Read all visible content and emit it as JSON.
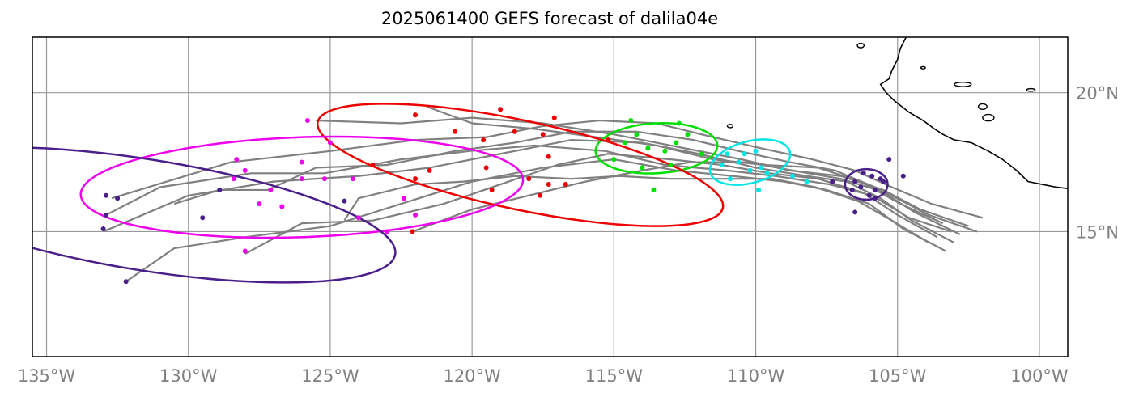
{
  "title": "2025061400 GEFS forecast of dalila04e",
  "x_ticks": [
    {
      "lon": -135,
      "label": "135°W"
    },
    {
      "lon": -130,
      "label": "130°W"
    },
    {
      "lon": -125,
      "label": "125°W"
    },
    {
      "lon": -120,
      "label": "120°W"
    },
    {
      "lon": -115,
      "label": "115°W"
    },
    {
      "lon": -110,
      "label": "110°W"
    },
    {
      "lon": -105,
      "label": "105°W"
    },
    {
      "lon": -100,
      "label": "100°W"
    }
  ],
  "y_ticks": [
    {
      "lat": 20,
      "label": "20°N"
    },
    {
      "lat": 15,
      "label": "15°N"
    }
  ],
  "extent": {
    "lon_min": -135.5,
    "lon_max": -99.0,
    "lat_min": 10.5,
    "lat_max": 22.0
  },
  "colors": {
    "tracks": "#808080",
    "coast": "#000000",
    "grid": "#999999"
  },
  "chart_data": {
    "type": "map",
    "title": "2025061400 GEFS forecast of dalila04e",
    "lon_range": [
      -135.5,
      -99.0
    ],
    "lat_range": [
      10.5,
      22.0
    ],
    "grid": true,
    "ensemble_tracks": [
      [
        [
          -103.0,
          14.6
        ],
        [
          -104.5,
          15.4
        ],
        [
          -105.6,
          16.2
        ],
        [
          -106.8,
          16.8
        ],
        [
          -108.2,
          17.0
        ],
        [
          -110.0,
          17.3
        ],
        [
          -112.0,
          17.8
        ],
        [
          -114.0,
          18.2
        ],
        [
          -116.5,
          18.3
        ],
        [
          -119.0,
          17.8
        ],
        [
          -121.5,
          17.3
        ],
        [
          -124.0,
          17.0
        ],
        [
          -127.0,
          16.8
        ],
        [
          -130.0,
          16.3
        ],
        [
          -133.0,
          15.0
        ]
      ],
      [
        [
          -102.5,
          15.2
        ],
        [
          -104.2,
          15.8
        ],
        [
          -105.5,
          16.5
        ],
        [
          -107.0,
          17.0
        ],
        [
          -108.8,
          17.2
        ],
        [
          -110.5,
          17.6
        ],
        [
          -112.5,
          18.0
        ],
        [
          -115.0,
          18.5
        ],
        [
          -117.5,
          18.9
        ],
        [
          -120.0,
          19.1
        ],
        [
          -122.5,
          18.9
        ],
        [
          -125.5,
          19.0
        ]
      ],
      [
        [
          -103.3,
          14.3
        ],
        [
          -104.8,
          15.1
        ],
        [
          -106.0,
          16.0
        ],
        [
          -107.5,
          16.5
        ],
        [
          -109.0,
          16.8
        ],
        [
          -110.8,
          17.0
        ],
        [
          -112.8,
          17.2
        ],
        [
          -115.0,
          17.6
        ],
        [
          -117.5,
          17.3
        ],
        [
          -120.0,
          16.8
        ],
        [
          -122.5,
          16.0
        ],
        [
          -125.0,
          15.2
        ],
        [
          -128.0,
          14.8
        ],
        [
          -130.5,
          14.4
        ],
        [
          -132.2,
          13.2
        ]
      ],
      [
        [
          -102.0,
          15.5
        ],
        [
          -103.8,
          16.0
        ],
        [
          -105.2,
          16.6
        ],
        [
          -106.5,
          17.2
        ],
        [
          -108.0,
          17.6
        ],
        [
          -109.8,
          18.0
        ],
        [
          -111.5,
          18.4
        ],
        [
          -113.5,
          18.9
        ],
        [
          -115.5,
          19.0
        ],
        [
          -117.5,
          18.8
        ],
        [
          -119.5,
          18.4
        ],
        [
          -122.0,
          18.3
        ],
        [
          -125.0,
          17.9
        ],
        [
          -128.5,
          17.5
        ],
        [
          -132.7,
          16.2
        ]
      ],
      [
        [
          -103.6,
          14.8
        ],
        [
          -105.0,
          15.6
        ],
        [
          -106.2,
          16.4
        ],
        [
          -107.8,
          16.9
        ],
        [
          -109.5,
          17.1
        ],
        [
          -111.2,
          17.4
        ],
        [
          -113.0,
          17.6
        ],
        [
          -115.2,
          17.8
        ],
        [
          -117.0,
          17.4
        ],
        [
          -119.0,
          16.7
        ],
        [
          -121.0,
          16.0
        ],
        [
          -123.5,
          15.4
        ],
        [
          -126.0,
          15.3
        ],
        [
          -128.0,
          14.2
        ]
      ],
      [
        [
          -102.8,
          14.9
        ],
        [
          -104.4,
          15.7
        ],
        [
          -105.8,
          16.6
        ],
        [
          -107.2,
          17.2
        ],
        [
          -108.8,
          17.5
        ],
        [
          -110.6,
          17.9
        ],
        [
          -112.2,
          18.3
        ],
        [
          -114.2,
          18.6
        ],
        [
          -116.5,
          18.6
        ],
        [
          -118.5,
          18.2
        ],
        [
          -120.6,
          17.9
        ],
        [
          -123.0,
          17.4
        ],
        [
          -125.5,
          17.3
        ],
        [
          -127.2,
          16.5
        ],
        [
          -128.9,
          16.5
        ],
        [
          -130.5,
          16.0
        ]
      ],
      [
        [
          -103.1,
          15.0
        ],
        [
          -104.6,
          15.5
        ],
        [
          -105.9,
          16.3
        ],
        [
          -107.4,
          16.7
        ],
        [
          -109.3,
          17.0
        ],
        [
          -111.0,
          17.2
        ],
        [
          -113.2,
          17.4
        ],
        [
          -115.3,
          17.9
        ],
        [
          -117.8,
          18.1
        ],
        [
          -120.1,
          17.9
        ],
        [
          -122.5,
          17.6
        ],
        [
          -125.2,
          17.1
        ],
        [
          -127.8,
          17.1
        ],
        [
          -131.0,
          16.6
        ],
        [
          -132.9,
          15.6
        ]
      ],
      [
        [
          -103.4,
          15.3
        ],
        [
          -104.9,
          16.0
        ],
        [
          -106.3,
          16.8
        ],
        [
          -107.8,
          17.3
        ],
        [
          -109.7,
          17.4
        ],
        [
          -111.5,
          17.6
        ],
        [
          -113.5,
          18.1
        ],
        [
          -115.6,
          18.4
        ],
        [
          -117.8,
          18.7
        ],
        [
          -120.0,
          18.9
        ],
        [
          -121.6,
          19.5
        ]
      ],
      [
        [
          -102.2,
          15.0
        ],
        [
          -103.9,
          15.6
        ],
        [
          -105.4,
          16.4
        ],
        [
          -107.0,
          16.9
        ],
        [
          -108.7,
          17.2
        ],
        [
          -110.3,
          17.5
        ],
        [
          -112.3,
          17.5
        ],
        [
          -114.0,
          17.2
        ],
        [
          -116.0,
          16.8
        ],
        [
          -118.0,
          16.3
        ],
        [
          -120.0,
          15.8
        ],
        [
          -122.1,
          15.0
        ]
      ],
      [
        [
          -103.9,
          14.6
        ],
        [
          -105.2,
          15.4
        ],
        [
          -106.4,
          16.1
        ],
        [
          -107.9,
          16.6
        ],
        [
          -109.4,
          16.9
        ],
        [
          -111.2,
          16.9
        ],
        [
          -113.0,
          16.9
        ],
        [
          -114.8,
          17.0
        ],
        [
          -116.5,
          16.9
        ],
        [
          -118.5,
          17.0
        ],
        [
          -120.3,
          16.8
        ],
        [
          -122.0,
          16.7
        ],
        [
          -124.0,
          16.2
        ],
        [
          -124.5,
          15.4
        ]
      ]
    ],
    "uncertainty_ellipses": [
      {
        "color": "#4b1f8a",
        "center": [
          -106.1,
          16.7
        ],
        "semi_axes_deg": [
          0.75,
          0.55
        ],
        "angle_deg": 0
      },
      {
        "color": "#00e5e5",
        "center": [
          -110.2,
          17.5
        ],
        "semi_axes_deg": [
          1.45,
          0.75
        ],
        "angle_deg": -15
      },
      {
        "color": "#00e000",
        "center": [
          -113.5,
          18.0
        ],
        "semi_axes_deg": [
          2.15,
          0.9
        ],
        "angle_deg": -3
      },
      {
        "color": "#ee0000",
        "center": [
          -118.3,
          17.4
        ],
        "semi_axes_deg": [
          7.3,
          1.6
        ],
        "angle_deg": 12
      },
      {
        "color": "#ee00ee",
        "center": [
          -126.0,
          16.6
        ],
        "semi_axes_deg": [
          7.8,
          1.8
        ],
        "angle_deg": -2
      },
      {
        "color": "#4b1f8a",
        "center": [
          -131.5,
          15.6
        ],
        "semi_axes_deg": [
          8.9,
          2.0
        ],
        "angle_deg": 9
      }
    ],
    "forecast_points": [
      {
        "color": "#4b1f8a",
        "points": [
          [
            -106.5,
            16.8
          ],
          [
            -106.2,
            17.1
          ],
          [
            -105.8,
            16.5
          ],
          [
            -106.0,
            16.3
          ],
          [
            -105.5,
            16.8
          ],
          [
            -106.6,
            16.5
          ],
          [
            -105.9,
            17.0
          ],
          [
            -106.3,
            16.6
          ],
          [
            -105.6,
            16.9
          ],
          [
            -105.3,
            17.6
          ],
          [
            -104.8,
            17.0
          ],
          [
            -107.3,
            16.8
          ],
          [
            -106.5,
            15.7
          ],
          [
            -105.8,
            16.2
          ]
        ]
      },
      {
        "color": "#00e5e5",
        "points": [
          [
            -111.0,
            17.8
          ],
          [
            -110.6,
            17.5
          ],
          [
            -110.2,
            17.2
          ],
          [
            -109.8,
            17.3
          ],
          [
            -110.9,
            16.9
          ],
          [
            -110.4,
            17.8
          ],
          [
            -109.6,
            17.1
          ],
          [
            -109.9,
            16.5
          ],
          [
            -111.2,
            17.4
          ],
          [
            -108.7,
            17.0
          ],
          [
            -108.2,
            16.8
          ],
          [
            -110.0,
            17.9
          ]
        ]
      },
      {
        "color": "#00e000",
        "points": [
          [
            -115.0,
            17.6
          ],
          [
            -114.6,
            18.2
          ],
          [
            -114.2,
            18.5
          ],
          [
            -113.8,
            18.0
          ],
          [
            -113.2,
            17.9
          ],
          [
            -112.8,
            18.2
          ],
          [
            -112.4,
            18.5
          ],
          [
            -113.0,
            17.4
          ],
          [
            -114.0,
            17.3
          ],
          [
            -115.2,
            18.3
          ],
          [
            -112.7,
            18.9
          ],
          [
            -111.9,
            17.8
          ],
          [
            -113.6,
            16.5
          ],
          [
            -114.4,
            19.0
          ]
        ]
      },
      {
        "color": "#ee0000",
        "points": [
          [
            -122.0,
            19.2
          ],
          [
            -120.6,
            18.6
          ],
          [
            -119.6,
            18.3
          ],
          [
            -119.0,
            19.4
          ],
          [
            -117.5,
            18.5
          ],
          [
            -117.3,
            17.7
          ],
          [
            -118.0,
            16.9
          ],
          [
            -117.3,
            16.7
          ],
          [
            -119.5,
            17.3
          ],
          [
            -121.5,
            17.2
          ],
          [
            -122.0,
            16.9
          ],
          [
            -123.5,
            17.4
          ],
          [
            -116.7,
            16.7
          ],
          [
            -115.2,
            18.3
          ],
          [
            -117.1,
            19.1
          ],
          [
            -117.6,
            16.3
          ],
          [
            -119.3,
            16.5
          ],
          [
            -118.5,
            18.6
          ],
          [
            -122.1,
            15.0
          ]
        ]
      },
      {
        "color": "#ee00ee",
        "points": [
          [
            -128.0,
            17.2
          ],
          [
            -127.1,
            16.5
          ],
          [
            -126.0,
            16.9
          ],
          [
            -125.2,
            16.9
          ],
          [
            -124.2,
            16.9
          ],
          [
            -124.0,
            15.5
          ],
          [
            -126.7,
            15.9
          ],
          [
            -127.5,
            16.0
          ],
          [
            -128.4,
            16.9
          ],
          [
            -122.4,
            16.2
          ],
          [
            -122.0,
            15.6
          ],
          [
            -125.0,
            18.2
          ],
          [
            -126.0,
            17.5
          ],
          [
            -128.3,
            17.6
          ],
          [
            -128.0,
            14.3
          ],
          [
            -123.0,
            15.0
          ],
          [
            -125.8,
            19.0
          ]
        ]
      },
      {
        "color": "#4b1f8a",
        "points": [
          [
            -132.9,
            16.3
          ],
          [
            -132.5,
            16.2
          ],
          [
            -132.9,
            15.6
          ],
          [
            -133.0,
            15.1
          ],
          [
            -129.5,
            15.5
          ],
          [
            -128.9,
            16.5
          ],
          [
            -132.2,
            13.2
          ],
          [
            -124.5,
            16.1
          ]
        ]
      }
    ],
    "coastline_note": "Mexico Pacific coast upper right"
  }
}
